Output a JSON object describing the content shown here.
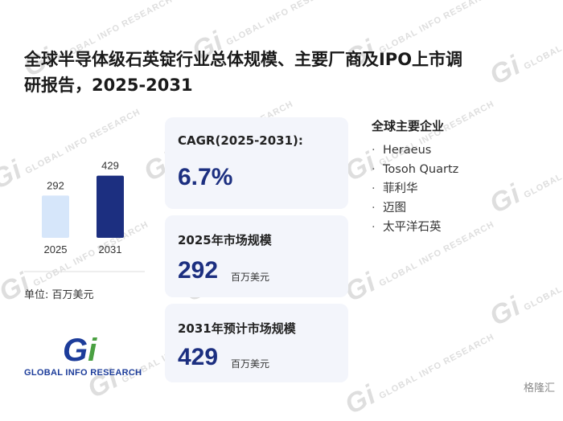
{
  "title": {
    "line1": "全球半导体级石英锭行业总体规模、主要厂商及IPO上市调",
    "line2": "研报告，2025-2031"
  },
  "chart_data": {
    "type": "bar",
    "categories": [
      "2025",
      "2031"
    ],
    "values": [
      292,
      429
    ],
    "colors": [
      "#d6e6fa",
      "#1c2f80"
    ],
    "unit_note": "单位: 百万美元"
  },
  "cards": {
    "cagr": {
      "label": "CAGR(2025-2031):",
      "value": "6.7%"
    },
    "market_2025": {
      "label": "2025年市场规模",
      "value": "292",
      "unit": "百万美元"
    },
    "market_2031": {
      "label": "2031年预计市场规模",
      "value": "429",
      "unit": "百万美元"
    }
  },
  "companies": {
    "heading": "全球主要企业",
    "items": [
      "Heraeus",
      "Tosoh Quartz",
      "菲利华",
      "迈图",
      "太平洋石英"
    ]
  },
  "logo": {
    "mark": "Gi",
    "text": "GLOBAL INFO RESEARCH"
  },
  "watermark": {
    "text": "GLOBAL INFO RESEARCH",
    "mark": "Gi"
  },
  "corner": {
    "text": "格隆汇"
  }
}
